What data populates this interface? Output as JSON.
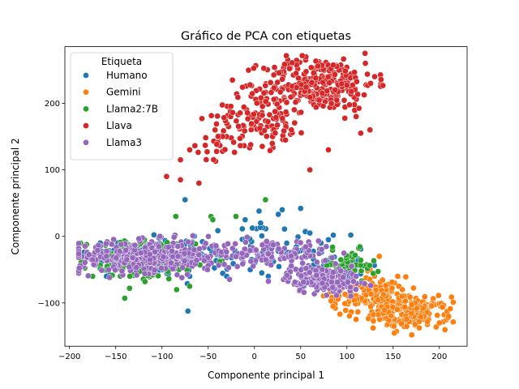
{
  "chart_data": {
    "type": "scatter",
    "title": "Gráfico de PCA con etiquetas",
    "xlabel": "Componente principal 1",
    "ylabel": "Componente principal 2",
    "xlim": [
      -205,
      230
    ],
    "ylim": [
      -165,
      285
    ],
    "xticks": [
      -200,
      -150,
      -100,
      -50,
      0,
      50,
      100,
      150,
      200
    ],
    "yticks": [
      -100,
      0,
      100,
      200
    ],
    "xtick_labels": [
      "−200",
      "−150",
      "−100",
      "−50",
      "0",
      "50",
      "100",
      "150",
      "200"
    ],
    "ytick_labels": [
      "−100",
      "0",
      "100",
      "200"
    ],
    "grid": false,
    "legend": {
      "title": "Etiqueta",
      "placement": "top-left"
    },
    "series": [
      {
        "name": "Humano",
        "color": "#1f77b4",
        "clusters": [
          {
            "x": -120,
            "y": -30,
            "sx": 35,
            "sy": 15,
            "n": 160
          },
          {
            "x": -10,
            "y": -20,
            "sx": 40,
            "sy": 22,
            "n": 70
          },
          {
            "x": 70,
            "y": -40,
            "sx": 25,
            "sy": 18,
            "n": 40
          }
        ],
        "outliers": [
          [
            -75,
            55
          ],
          [
            -10,
            25
          ],
          [
            5,
            38
          ],
          [
            50,
            42
          ],
          [
            30,
            40
          ],
          [
            60,
            5
          ],
          [
            80,
            -5
          ],
          [
            -160,
            -60
          ],
          [
            15,
            -60
          ],
          [
            -70,
            -60
          ],
          [
            -30,
            -60
          ]
        ]
      },
      {
        "name": "Gemini",
        "color": "#ff7f0e",
        "clusters": [
          {
            "x": 125,
            "y": -90,
            "sx": 20,
            "sy": 15,
            "n": 120
          },
          {
            "x": 170,
            "y": -115,
            "sx": 20,
            "sy": 12,
            "n": 180
          }
        ],
        "outliers": [
          [
            135,
            -30
          ],
          [
            105,
            -30
          ],
          [
            155,
            -60
          ],
          [
            160,
            -80
          ],
          [
            210,
            -120
          ],
          [
            200,
            -130
          ],
          [
            125,
            -50
          ],
          [
            85,
            -105
          ]
        ]
      },
      {
        "name": "Llama2:7B",
        "color": "#2ca02c",
        "clusters": [
          {
            "x": -125,
            "y": -35,
            "sx": 30,
            "sy": 15,
            "n": 170
          },
          {
            "x": 100,
            "y": -45,
            "sx": 15,
            "sy": 12,
            "n": 60
          }
        ],
        "outliers": [
          [
            12,
            55
          ],
          [
            -47,
            30
          ],
          [
            -20,
            30
          ],
          [
            -45,
            25
          ],
          [
            -85,
            30
          ],
          [
            -70,
            -75
          ],
          [
            -135,
            -78
          ],
          [
            -175,
            -60
          ]
        ]
      },
      {
        "name": "Llava",
        "color": "#d62728",
        "clusters": [
          {
            "x": 70,
            "y": 230,
            "sx": 30,
            "sy": 20,
            "n": 280
          },
          {
            "x": 10,
            "y": 180,
            "sx": 25,
            "sy": 22,
            "n": 130
          },
          {
            "x": -40,
            "y": 140,
            "sx": 15,
            "sy": 12,
            "n": 25
          }
        ],
        "outliers": [
          [
            -95,
            90
          ],
          [
            -80,
            85
          ],
          [
            -60,
            80
          ],
          [
            -70,
            130
          ],
          [
            -80,
            115
          ],
          [
            120,
            260
          ],
          [
            130,
            240
          ],
          [
            110,
            180
          ],
          [
            60,
            100
          ],
          [
            80,
            130
          ],
          [
            40,
            160
          ],
          [
            115,
            155
          ],
          [
            125,
            160
          ]
        ]
      },
      {
        "name": "Llama3",
        "color": "#9467bd",
        "clusters": [
          {
            "x": -110,
            "y": -30,
            "sx": 40,
            "sy": 12,
            "n": 360
          },
          {
            "x": 20,
            "y": -25,
            "sx": 30,
            "sy": 10,
            "n": 100
          },
          {
            "x": 75,
            "y": -65,
            "sx": 20,
            "sy": 10,
            "n": 170
          }
        ],
        "outliers": [
          [
            -160,
            -30
          ],
          [
            -175,
            -35
          ],
          [
            105,
            -45
          ],
          [
            110,
            -60
          ]
        ]
      }
    ]
  }
}
